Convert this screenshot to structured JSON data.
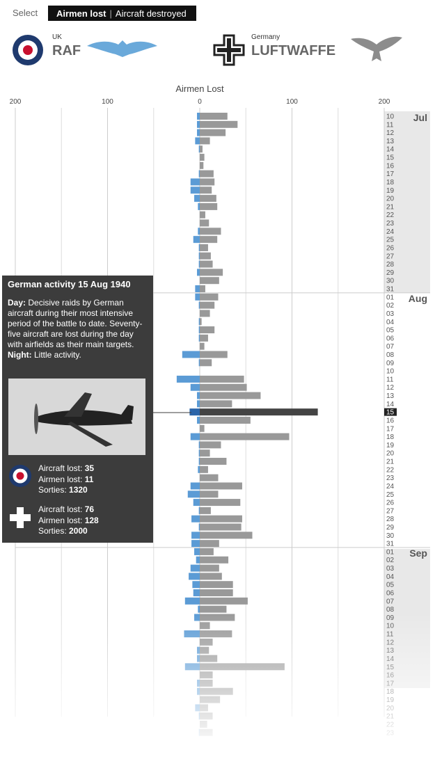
{
  "controls": {
    "select_label": "Select",
    "options": [
      "Airmen lost",
      "Aircraft destroyed"
    ]
  },
  "chart_data": {
    "type": "butterfly",
    "x_axis_label": "Airmen Lost",
    "xlim": [
      -200,
      200
    ],
    "xticks": [
      {
        "value": -200,
        "label": "200"
      },
      {
        "value": -100,
        "label": "100"
      },
      0,
      100,
      200
    ],
    "minor_xticks": [
      -150,
      -50,
      50,
      150
    ],
    "grid": true,
    "categories": [
      "10",
      "11",
      "12",
      "13",
      "14",
      "15",
      "16",
      "17",
      "18",
      "19",
      "20",
      "21",
      "22",
      "23",
      "24",
      "25",
      "26",
      "27",
      "28",
      "29",
      "30",
      "31",
      "01",
      "02",
      "03",
      "04",
      "05",
      "06",
      "07",
      "08",
      "09",
      "10",
      "11",
      "12",
      "13",
      "14",
      "15",
      "16",
      "17",
      "18",
      "19",
      "20",
      "21",
      "22",
      "23",
      "24",
      "25",
      "26",
      "27",
      "28",
      "29",
      "30",
      "31",
      "01",
      "02",
      "03",
      "04",
      "05",
      "06",
      "07",
      "08",
      "09",
      "10",
      "11",
      "12",
      "13",
      "14",
      "15",
      "16",
      "17",
      "18",
      "19",
      "20",
      "21",
      "22",
      "23"
    ],
    "months": [
      "Jul",
      "Aug",
      "Sep"
    ],
    "highlight": 36,
    "series": [
      {
        "name": "RAF",
        "country": "UK",
        "side": "left",
        "color": "#5b9bd5",
        "highlight_color": "#2a64a8",
        "values": [
          3,
          3,
          3,
          5,
          1,
          0,
          0,
          1,
          10,
          10,
          6,
          2,
          0,
          0,
          2,
          7,
          1,
          1,
          1,
          3,
          0,
          5,
          5,
          1,
          0,
          1,
          1,
          1,
          0,
          19,
          1,
          0,
          25,
          10,
          3,
          3,
          11,
          3,
          0,
          10,
          1,
          1,
          1,
          2,
          0,
          10,
          13,
          7,
          1,
          9,
          1,
          9,
          9,
          6,
          4,
          10,
          12,
          8,
          7,
          16,
          2,
          6,
          0,
          17,
          0,
          3,
          3,
          16,
          0,
          3,
          3,
          0,
          5,
          1,
          0,
          1
        ]
      },
      {
        "name": "LUFTWAFFE",
        "country": "Germany",
        "side": "right",
        "color": "#999999",
        "highlight_color": "#444444",
        "values": [
          30,
          41,
          28,
          11,
          3,
          5,
          4,
          15,
          16,
          13,
          18,
          19,
          6,
          10,
          23,
          19,
          9,
          12,
          14,
          25,
          21,
          6,
          20,
          16,
          11,
          2,
          16,
          9,
          5,
          30,
          13,
          0,
          48,
          51,
          66,
          35,
          128,
          55,
          5,
          97,
          23,
          11,
          29,
          9,
          20,
          46,
          20,
          44,
          12,
          46,
          45,
          57,
          21,
          15,
          31,
          21,
          24,
          36,
          36,
          52,
          29,
          38,
          11,
          35,
          14,
          10,
          19,
          92,
          14,
          14,
          36,
          22,
          9,
          14,
          8,
          14
        ]
      }
    ]
  },
  "tooltip": {
    "title": "German activity 15 Aug 1940",
    "day_label": "Day:",
    "day_text": "Decisive raids by German aircraft during their most intensive period of the battle to date. Seventy-five aircraft are lost during the day with airfields as their main targets.",
    "night_label": "Night:",
    "night_text": "Little activity.",
    "stat_labels": [
      "Aircraft lost:",
      "Airmen lost:",
      "Sorties:"
    ],
    "raf": [
      35,
      11,
      1320
    ],
    "luftwaffe": [
      76,
      128,
      2000
    ]
  }
}
